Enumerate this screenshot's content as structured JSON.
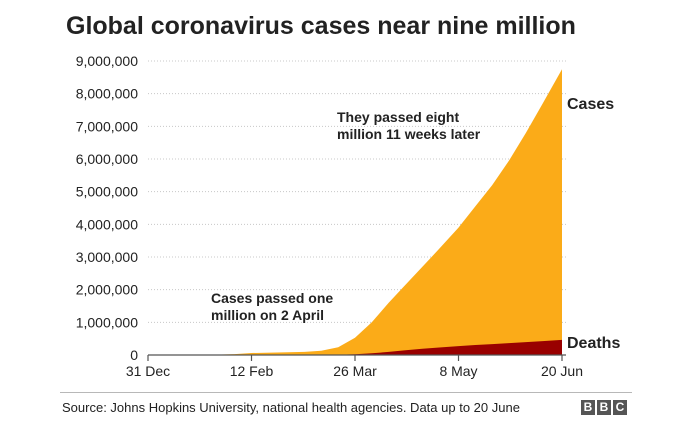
{
  "chart_data": {
    "type": "area",
    "title": "Global coronavirus cases near nine million",
    "xlabel": "",
    "ylabel": "",
    "ylim": [
      0,
      9000000
    ],
    "yticks": [
      0,
      1000000,
      2000000,
      3000000,
      4000000,
      5000000,
      6000000,
      7000000,
      8000000,
      9000000
    ],
    "ytick_labels": [
      "0",
      "1,000,000",
      "2,000,000",
      "3,000,000",
      "4,000,000",
      "5,000,000",
      "6,000,000",
      "7,000,000",
      "8,000,000",
      "9,000,000"
    ],
    "xlim": [
      "2019-12-31",
      "2020-06-20"
    ],
    "xticks": [
      "2019-12-31",
      "2020-02-12",
      "2020-03-26",
      "2020-05-08",
      "2020-06-20"
    ],
    "xtick_labels": [
      "31 Dec",
      "12 Feb",
      "26 Mar",
      "8 May",
      "20 Jun"
    ],
    "grid": "horizontal-dotted",
    "series": [
      {
        "name": "Cases",
        "color": "#fbab18",
        "x": [
          "2019-12-31",
          "2020-01-15",
          "2020-01-25",
          "2020-02-05",
          "2020-02-12",
          "2020-02-25",
          "2020-03-05",
          "2020-03-12",
          "2020-03-19",
          "2020-03-26",
          "2020-04-02",
          "2020-04-09",
          "2020-04-16",
          "2020-04-23",
          "2020-04-30",
          "2020-05-08",
          "2020-05-15",
          "2020-05-22",
          "2020-05-29",
          "2020-06-05",
          "2020-06-12",
          "2020-06-20"
        ],
        "values": [
          0,
          0,
          2000,
          28000,
          60000,
          80000,
          96000,
          128000,
          240000,
          530000,
          1000000,
          1600000,
          2150000,
          2700000,
          3250000,
          3900000,
          4550000,
          5200000,
          5950000,
          6800000,
          7700000,
          8750000
        ]
      },
      {
        "name": "Deaths",
        "color": "#990000",
        "x": [
          "2019-12-31",
          "2020-02-12",
          "2020-03-05",
          "2020-03-19",
          "2020-03-26",
          "2020-04-02",
          "2020-04-09",
          "2020-04-16",
          "2020-04-23",
          "2020-04-30",
          "2020-05-08",
          "2020-05-15",
          "2020-05-22",
          "2020-05-29",
          "2020-06-05",
          "2020-06-12",
          "2020-06-20"
        ],
        "values": [
          0,
          1400,
          3300,
          10000,
          25000,
          52000,
          95000,
          145000,
          190000,
          230000,
          272000,
          305000,
          335000,
          365000,
          395000,
          425000,
          462000
        ]
      }
    ],
    "annotations": [
      {
        "text_lines": [
          "They passed eight",
          "million 11 weeks later"
        ]
      },
      {
        "text_lines": [
          "Cases passed one",
          "million on 2 April"
        ]
      }
    ]
  },
  "source_note": "Source: Johns Hopkins University, national health agencies. Data up to 20 June",
  "logo": {
    "letters": [
      "B",
      "B",
      "C"
    ]
  }
}
